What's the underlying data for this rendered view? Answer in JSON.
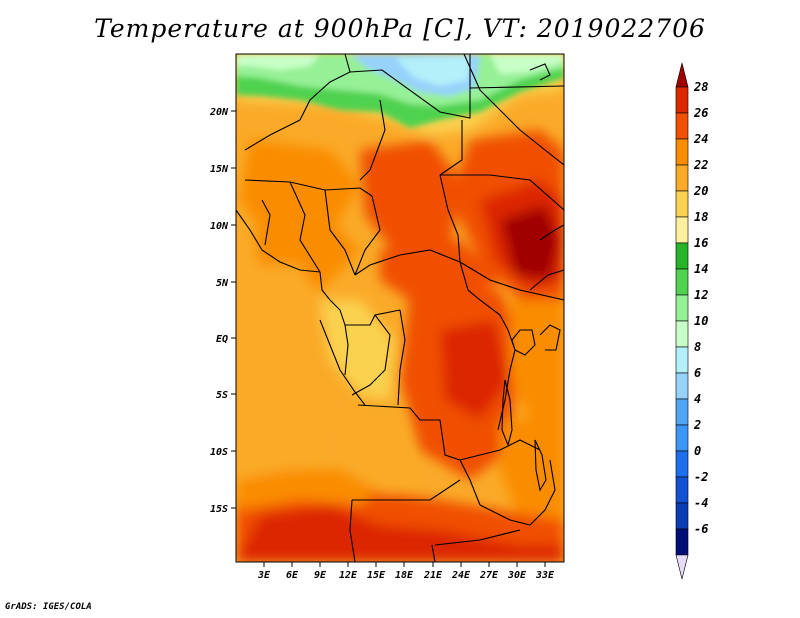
{
  "title": "Temperature at 900hPa [C], VT: 2019022706",
  "credit": "GrADS: IGES/COLA",
  "lat_labels": [
    "20N",
    "15N",
    "10N",
    "5N",
    "EQ",
    "5S",
    "10S",
    "15S"
  ],
  "lon_labels": [
    "3E",
    "6E",
    "9E",
    "12E",
    "15E",
    "18E",
    "21E",
    "24E",
    "27E",
    "30E",
    "33E"
  ],
  "colorbar": {
    "levels": [
      "28",
      "26",
      "24",
      "22",
      "20",
      "18",
      "16",
      "14",
      "12",
      "10",
      "8",
      "6",
      "4",
      "2",
      "0",
      "-2",
      "-4",
      "-6"
    ],
    "colors": [
      "#a00000",
      "#dc2800",
      "#f05000",
      "#fa8c00",
      "#faaa28",
      "#fad250",
      "#fff0a0",
      "#28b428",
      "#50d250",
      "#96f096",
      "#c8ffc8",
      "#b4f0fa",
      "#96d2fa",
      "#50a5f5",
      "#3c96f5",
      "#1e6eeb",
      "#1450d2",
      "#0a3cb4",
      "#000f78",
      "#e6dcfa"
    ]
  },
  "map": {
    "variable": "Temperature at 900hPa",
    "units": "C",
    "valid_time": "2019022706",
    "lon_range": [
      0,
      35
    ],
    "lat_range": [
      -20,
      24
    ]
  }
}
